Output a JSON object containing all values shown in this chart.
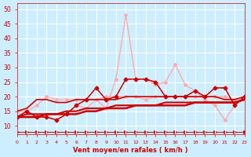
{
  "background_color": "#cceeff",
  "grid_color": "#ffffff",
  "xlabel": "Vent moyen/en rafales ( km/h )",
  "xlabel_color": "#cc0000",
  "tick_color": "#cc0000",
  "xlim": [
    0,
    23
  ],
  "ylim": [
    7,
    52
  ],
  "yticks": [
    10,
    15,
    20,
    25,
    30,
    35,
    40,
    45,
    50
  ],
  "xticks": [
    0,
    1,
    2,
    3,
    4,
    5,
    6,
    7,
    8,
    9,
    10,
    11,
    12,
    13,
    14,
    15,
    16,
    17,
    18,
    19,
    20,
    21,
    22,
    23
  ],
  "series": [
    {
      "x": [
        0,
        1,
        2,
        3,
        4,
        5,
        6,
        7,
        8,
        9,
        10,
        11,
        12,
        13,
        14,
        15,
        16,
        17,
        18,
        19,
        20,
        21,
        22,
        23
      ],
      "y": [
        13,
        15,
        13,
        13,
        12,
        14,
        17,
        19,
        23,
        19,
        20,
        26,
        26,
        26,
        25,
        20,
        20,
        20,
        22,
        20,
        23,
        23,
        17,
        20
      ],
      "color": "#cc0000",
      "lw": 1.0,
      "marker": "D",
      "markersize": 2.5,
      "linestyle": "-",
      "zorder": 5
    },
    {
      "x": [
        0,
        1,
        2,
        3,
        4,
        5,
        6,
        7,
        8,
        9,
        10,
        11,
        12,
        13,
        14,
        15,
        16,
        17,
        18,
        19,
        20,
        21,
        22,
        23
      ],
      "y": [
        13,
        15,
        13,
        13,
        12,
        14,
        17,
        19,
        23,
        19,
        20,
        26,
        26,
        26,
        25,
        20,
        20,
        20,
        22,
        20,
        23,
        23,
        17,
        20
      ],
      "color": "#cc0000",
      "lw": 0.8,
      "linestyle": "--",
      "marker": "",
      "markersize": 0,
      "zorder": 4
    },
    {
      "x": [
        0,
        1,
        2,
        3,
        4,
        5,
        6,
        7,
        8,
        9,
        10,
        11,
        12,
        13,
        14,
        15,
        16,
        17,
        18,
        19,
        20,
        21,
        22,
        23
      ],
      "y": [
        15,
        16,
        19,
        19,
        18,
        18,
        19,
        19,
        19,
        19,
        19,
        20,
        20,
        20,
        20,
        20,
        20,
        20,
        20,
        20,
        20,
        19,
        19,
        20
      ],
      "color": "#cc0000",
      "lw": 1.2,
      "linestyle": "-",
      "marker": "",
      "markersize": 0,
      "zorder": 3
    },
    {
      "x": [
        0,
        1,
        2,
        3,
        4,
        5,
        6,
        7,
        8,
        9,
        10,
        11,
        12,
        13,
        14,
        15,
        16,
        17,
        18,
        19,
        20,
        21,
        22,
        23
      ],
      "y": [
        13,
        14,
        14,
        14,
        14,
        15,
        15,
        16,
        16,
        16,
        17,
        17,
        17,
        17,
        17,
        18,
        18,
        18,
        18,
        18,
        18,
        18,
        18,
        19
      ],
      "color": "#cc0000",
      "lw": 1.5,
      "linestyle": "-",
      "marker": "",
      "markersize": 0,
      "zorder": 3
    },
    {
      "x": [
        0,
        1,
        2,
        3,
        4,
        5,
        6,
        7,
        8,
        9,
        10,
        11,
        12,
        13,
        14,
        15,
        16,
        17,
        18,
        19,
        20,
        21,
        22,
        23
      ],
      "y": [
        13,
        13,
        13,
        14,
        14,
        14,
        14,
        15,
        15,
        16,
        16,
        16,
        17,
        17,
        17,
        17,
        17,
        17,
        18,
        18,
        18,
        18,
        18,
        19
      ],
      "color": "#cc0000",
      "lw": 1.8,
      "linestyle": "-",
      "marker": "",
      "markersize": 0,
      "zorder": 3
    },
    {
      "x": [
        0,
        1,
        2,
        3,
        4,
        5,
        6,
        7,
        8,
        9,
        10,
        11,
        12,
        13,
        14,
        15,
        16,
        17,
        18,
        19,
        20,
        21,
        22,
        23
      ],
      "y": [
        15,
        15,
        17,
        20,
        19,
        19,
        19,
        19,
        19,
        20,
        20,
        20,
        20,
        19,
        20,
        20,
        20,
        20,
        20,
        20,
        20,
        20,
        19,
        20
      ],
      "color": "#ffaaaa",
      "lw": 1.0,
      "linestyle": "-",
      "marker": "D",
      "markersize": 2.0,
      "zorder": 2
    },
    {
      "x": [
        0,
        1,
        2,
        3,
        4,
        5,
        6,
        7,
        8,
        9,
        10,
        11,
        12,
        13,
        14,
        15,
        16,
        17,
        18,
        19,
        20,
        21,
        22,
        23
      ],
      "y": [
        13,
        15,
        13,
        13,
        12,
        14,
        17,
        16,
        19,
        16,
        26,
        48,
        26,
        26,
        24,
        25,
        31,
        24,
        22,
        19,
        17,
        12,
        17,
        20
      ],
      "color": "#ffaaaa",
      "lw": 1.0,
      "linestyle": "-",
      "marker": "D",
      "markersize": 2.0,
      "zorder": 2
    },
    {
      "x": [
        0,
        1,
        2,
        3,
        4,
        5,
        6,
        7,
        8,
        9,
        10,
        11,
        12,
        13,
        14,
        15,
        16,
        17,
        18,
        19,
        20,
        21,
        22,
        23
      ],
      "y": [
        8,
        8,
        8,
        8,
        8,
        8,
        8,
        8,
        8,
        8,
        8,
        8,
        8,
        8,
        8,
        8,
        8,
        8,
        8,
        8,
        8,
        8,
        8,
        8
      ],
      "color": "#cc0000",
      "lw": 0.7,
      "linestyle": "-",
      "marker": ">",
      "markersize": 2.5,
      "zorder": 1
    }
  ]
}
